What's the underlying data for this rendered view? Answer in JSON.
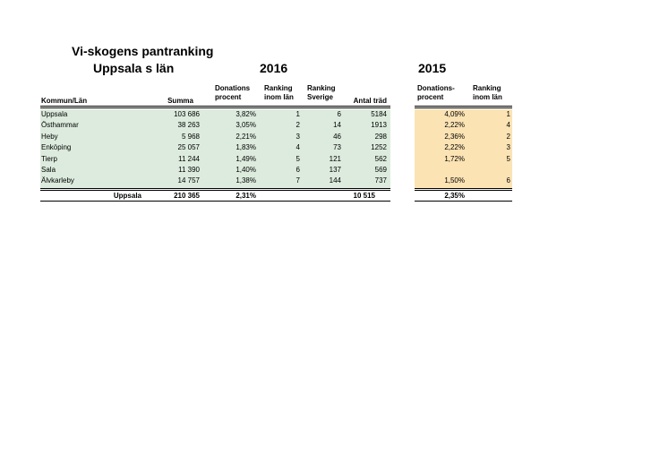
{
  "title": "Vi-skogens pantranking",
  "subtitle": "Uppsala s län",
  "year_current": "2016",
  "year_previous": "2015",
  "headers": {
    "kommun": "Kommun/Län",
    "summa": "Summa",
    "donations_l1": "Donations",
    "donations_l2": "procent",
    "ranking_lan_l1": "Ranking",
    "ranking_lan_l2": "inom län",
    "ranking_sverige_l1": "Ranking",
    "ranking_sverige_l2": "Sverige",
    "antal_trad": "Antal träd",
    "prev_donations_l1": "Donations-",
    "prev_donations_l2": "procent",
    "prev_ranking_l1": "Ranking",
    "prev_ranking_l2": "inom län"
  },
  "rows": [
    {
      "kommun": "Uppsala",
      "summa": "103 686",
      "procent": "3,82%",
      "rank_lan": "1",
      "rank_sverige": "6",
      "trad": "5184",
      "prev_procent": "4,09%",
      "prev_rank": "1"
    },
    {
      "kommun": "Östhammar",
      "summa": "38 263",
      "procent": "3,05%",
      "rank_lan": "2",
      "rank_sverige": "14",
      "trad": "1913",
      "prev_procent": "2,22%",
      "prev_rank": "4"
    },
    {
      "kommun": "Heby",
      "summa": "5 968",
      "procent": "2,21%",
      "rank_lan": "3",
      "rank_sverige": "46",
      "trad": "298",
      "prev_procent": "2,36%",
      "prev_rank": "2"
    },
    {
      "kommun": "Enköping",
      "summa": "25 057",
      "procent": "1,83%",
      "rank_lan": "4",
      "rank_sverige": "73",
      "trad": "1252",
      "prev_procent": "2,22%",
      "prev_rank": "3"
    },
    {
      "kommun": "Tierp",
      "summa": "11 244",
      "procent": "1,49%",
      "rank_lan": "5",
      "rank_sverige": "121",
      "trad": "562",
      "prev_procent": "1,72%",
      "prev_rank": "5"
    },
    {
      "kommun": "Sala",
      "summa": "11 390",
      "procent": "1,40%",
      "rank_lan": "6",
      "rank_sverige": "137",
      "trad": "569",
      "prev_procent": "",
      "prev_rank": ""
    },
    {
      "kommun": "Älvkarleby",
      "summa": "14 757",
      "procent": "1,38%",
      "rank_lan": "7",
      "rank_sverige": "144",
      "trad": "737",
      "prev_procent": "1,50%",
      "prev_rank": "6"
    }
  ],
  "total": {
    "label": "Uppsala",
    "summa": "210 365",
    "procent": "2,31%",
    "trad": "10 515",
    "prev_procent": "2,35%"
  }
}
